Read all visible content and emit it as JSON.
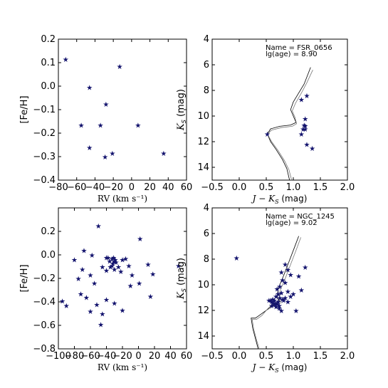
{
  "chart_data": [
    {
      "type": "scatter",
      "xlabel": "RV (km s⁻¹)",
      "ylabel": "[Fe/H]",
      "xlim": [
        -80,
        60
      ],
      "ylim": [
        -0.4,
        0.2
      ],
      "xticks": [
        -80,
        -60,
        -40,
        -20,
        0,
        20,
        40,
        60
      ],
      "xticklabels": [
        "−80",
        "−60",
        "−40",
        "−20",
        "0",
        "20",
        "40",
        "60"
      ],
      "yticks": [
        -0.4,
        -0.3,
        -0.2,
        -0.1,
        0.0,
        0.1,
        0.2
      ],
      "yticklabels": [
        "−0.4",
        "−0.3",
        "−0.2",
        "−0.1",
        "0.0",
        "0.1",
        "0.2"
      ],
      "series": [
        {
          "marker": "star",
          "color": "#14146e",
          "x": [
            -72,
            -46,
            -13,
            -28,
            -55,
            -34,
            7,
            -46,
            -21,
            -29,
            35
          ],
          "y": [
            0.115,
            -0.005,
            0.085,
            -0.075,
            -0.165,
            -0.165,
            -0.165,
            -0.26,
            -0.285,
            -0.3,
            -0.285
          ]
        }
      ]
    },
    {
      "type": "scatter",
      "xlabel": "J − K",
      "xlabel_sub": "S",
      "xlabel_unit": "(mag)",
      "ylabel": "K",
      "ylabel_sub": "S",
      "ylabel_unit": "(mag)",
      "xlim": [
        -0.5,
        2.0
      ],
      "ylim": [
        15,
        4
      ],
      "xticks": [
        -0.5,
        0.0,
        0.5,
        1.0,
        1.5,
        2.0
      ],
      "xticklabels": [
        "−0.5",
        "0.0",
        "0.5",
        "1.0",
        "1.5",
        "2.0"
      ],
      "yticks": [
        4,
        6,
        8,
        10,
        12,
        14
      ],
      "yticklabels": [
        "4",
        "6",
        "8",
        "10",
        "12",
        "14"
      ],
      "annotation": [
        "Name =  FSR_0656",
        "lg(age) =  8.90"
      ],
      "series": [
        {
          "marker": "star",
          "color": "#14146e",
          "x": [
            1.25,
            1.15,
            1.22,
            1.2,
            1.22,
            1.18,
            1.22,
            1.15,
            1.25,
            1.35,
            0.52
          ],
          "y": [
            8.4,
            8.7,
            10.2,
            10.7,
            10.75,
            11.0,
            11.0,
            11.4,
            12.2,
            12.5,
            11.4
          ]
        }
      ]
    },
    {
      "type": "scatter",
      "xlabel": "RV (km s⁻¹)",
      "ylabel": "[Fe/H]",
      "xlim": [
        -100,
        60
      ],
      "ylim": [
        -0.8,
        0.4
      ],
      "xticks": [
        -100,
        -80,
        -60,
        -40,
        -20,
        0,
        20,
        40,
        60
      ],
      "xticklabels": [
        "−100",
        "−80",
        "−60",
        "−40",
        "−20",
        "0",
        "20",
        "40",
        "60"
      ],
      "yticks": [
        -0.8,
        -0.6,
        -0.4,
        -0.2,
        0.0,
        0.2
      ],
      "yticklabels": [
        "−0.8",
        "−0.6",
        "−0.4",
        "−0.2",
        "0.0",
        "0.2"
      ],
      "series": [
        {
          "marker": "star",
          "color": "#14146e",
          "x": [
            -50,
            2,
            -68,
            -80,
            -58,
            -40,
            -33,
            -30,
            -28,
            -32,
            -36,
            -38,
            -31,
            -29,
            -33,
            -35,
            -30,
            -25,
            -20,
            -45,
            -40,
            -22,
            -16,
            -12,
            -8,
            1,
            12,
            18,
            50,
            -95,
            -90,
            -72,
            -65,
            -60,
            -52,
            -47,
            -45,
            -40,
            -30,
            -20,
            -10,
            15,
            -55,
            -75,
            -60,
            -70
          ],
          "y": [
            0.25,
            0.14,
            0.04,
            -0.04,
            0.0,
            -0.02,
            -0.03,
            -0.05,
            -0.06,
            -0.07,
            -0.05,
            -0.02,
            -0.02,
            -0.04,
            -0.09,
            -0.1,
            -0.12,
            -0.1,
            -0.04,
            -0.1,
            -0.13,
            -0.14,
            -0.03,
            -0.09,
            -0.17,
            -0.24,
            -0.08,
            -0.16,
            -0.09,
            -0.39,
            -0.43,
            -0.33,
            -0.36,
            -0.48,
            -0.42,
            -0.59,
            -0.5,
            -0.38,
            -0.41,
            -0.47,
            -0.26,
            -0.35,
            -0.24,
            -0.2,
            -0.17,
            -0.12
          ]
        }
      ]
    },
    {
      "type": "scatter",
      "xlabel": "J − K",
      "xlabel_sub": "S",
      "xlabel_unit": "(mag)",
      "ylabel": "K",
      "ylabel_sub": "S",
      "ylabel_unit": "(mag)",
      "xlim": [
        -0.5,
        2.0
      ],
      "ylim": [
        15,
        4
      ],
      "xticks": [
        -0.5,
        0.0,
        0.5,
        1.0,
        1.5,
        2.0
      ],
      "xticklabels": [
        "−0.5",
        "0.0",
        "0.5",
        "1.0",
        "1.5",
        "2.0"
      ],
      "yticks": [
        4,
        6,
        8,
        10,
        12,
        14
      ],
      "yticklabels": [
        "4",
        "6",
        "8",
        "10",
        "12",
        "14"
      ],
      "annotation": [
        "Name =  NGC_1245",
        "lg(age) =  9.02"
      ],
      "series": [
        {
          "marker": "star",
          "color": "#14146e",
          "x": [
            -0.05,
            0.85,
            1.22,
            0.9,
            0.78,
            0.95,
            1.1,
            0.8,
            0.85,
            0.75,
            0.7,
            0.9,
            0.72,
            0.68,
            0.75,
            0.8,
            0.65,
            0.6,
            0.62,
            0.7,
            0.55,
            0.72,
            0.66,
            0.74,
            0.68,
            0.85,
            0.95,
            1.0,
            1.15,
            0.78,
            0.82,
            0.9,
            0.62,
            0.58,
            0.7,
            0.74,
            0.6,
            0.65,
            0.78,
            1.05
          ],
          "y": [
            7.9,
            8.4,
            8.6,
            8.8,
            9.0,
            9.2,
            9.3,
            9.6,
            9.8,
            10.1,
            10.3,
            10.5,
            10.7,
            10.9,
            11.0,
            11.1,
            11.2,
            11.3,
            11.4,
            11.5,
            11.2,
            11.3,
            11.5,
            11.6,
            11.7,
            11.0,
            10.9,
            10.7,
            10.4,
            10.6,
            11.2,
            11.3,
            11.1,
            11.2,
            11.4,
            11.8,
            11.6,
            11.5,
            12.0,
            12.0
          ]
        }
      ]
    }
  ]
}
